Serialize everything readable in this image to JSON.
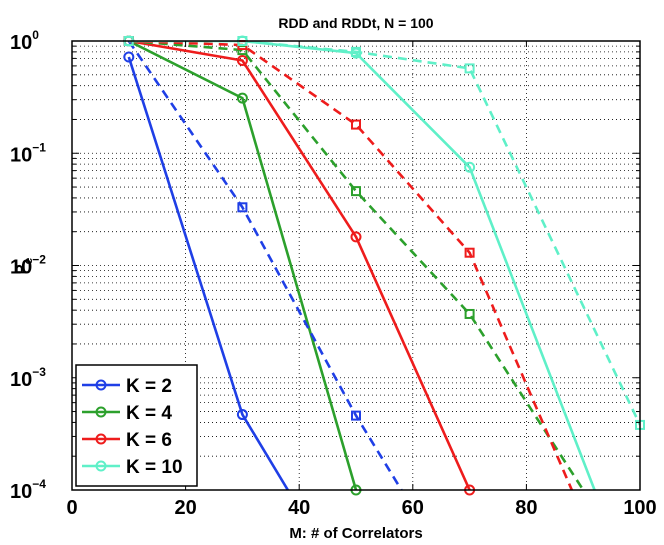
{
  "chart_data": {
    "type": "line",
    "title": "RDD and RDDt, N = 100",
    "xlabel": "M: # of Correlators",
    "ylabel": "P",
    "ylabel_subscript": "e",
    "xlim": [
      0,
      100
    ],
    "ylim": [
      0.0001,
      1
    ],
    "yscale": "log",
    "grid": true,
    "x_ticks": [
      0,
      20,
      40,
      60,
      80,
      100
    ],
    "x_tick_labels": [
      "0",
      "20",
      "40",
      "60",
      "80",
      "100"
    ],
    "y_ticks": [
      {
        "value": 1,
        "base": "10",
        "exp": "0"
      },
      {
        "value": 0.1,
        "base": "10",
        "exp": "−1"
      },
      {
        "value": 0.01,
        "base": "10",
        "exp": "−2"
      },
      {
        "value": 0.001,
        "base": "10",
        "exp": "−3"
      },
      {
        "value": 0.0001,
        "base": "10",
        "exp": "−4"
      }
    ],
    "legend_position": "bottom-left",
    "series": [
      {
        "name": "K = 2",
        "method": "RDD",
        "color": "#1f3fe6",
        "linestyle": "solid",
        "marker": "circle",
        "x": [
          10,
          30,
          38
        ],
        "y": [
          0.72,
          0.00047,
          0.0001
        ],
        "marker_x": [
          10,
          30
        ]
      },
      {
        "name": "K = 4",
        "method": "RDD",
        "color": "#2ca02c",
        "linestyle": "solid",
        "marker": "circle",
        "x": [
          10,
          30,
          50
        ],
        "y": [
          1.0,
          0.31,
          0.0001
        ],
        "marker_x": [
          10,
          30,
          50
        ]
      },
      {
        "name": "K = 6",
        "method": "RDD",
        "color": "#ee1c1c",
        "linestyle": "solid",
        "marker": "circle",
        "x": [
          10,
          30,
          50,
          70
        ],
        "y": [
          1.0,
          0.67,
          0.018,
          0.0001
        ],
        "marker_x": [
          10,
          30,
          50,
          70
        ]
      },
      {
        "name": "K = 10",
        "method": "RDD",
        "color": "#5ff0c8",
        "linestyle": "solid",
        "marker": "circle",
        "x": [
          10,
          30,
          50,
          70,
          92
        ],
        "y": [
          1.0,
          1.0,
          0.78,
          0.075,
          0.0001
        ],
        "marker_x": [
          10,
          30,
          50,
          70
        ]
      },
      {
        "name": "K = 2",
        "method": "RDDt",
        "color": "#1f3fe6",
        "linestyle": "dashed",
        "marker": "square",
        "x": [
          10,
          30,
          50,
          58
        ],
        "y": [
          1.0,
          0.033,
          0.00046,
          0.0001
        ],
        "marker_x": [
          10,
          30,
          50
        ]
      },
      {
        "name": "K = 4",
        "method": "RDDt",
        "color": "#2ca02c",
        "linestyle": "dashed",
        "marker": "square",
        "x": [
          10,
          30,
          50,
          70,
          90
        ],
        "y": [
          1.0,
          0.83,
          0.046,
          0.0037,
          0.0001
        ],
        "marker_x": [
          10,
          30,
          50,
          70
        ]
      },
      {
        "name": "K = 6",
        "method": "RDDt",
        "color": "#ee1c1c",
        "linestyle": "dashed",
        "marker": "square",
        "x": [
          10,
          30,
          50,
          70,
          88
        ],
        "y": [
          1.0,
          0.92,
          0.18,
          0.013,
          0.0001
        ],
        "marker_x": [
          10,
          30,
          50,
          70
        ]
      },
      {
        "name": "K = 10",
        "method": "RDDt",
        "color": "#5ff0c8",
        "linestyle": "dashed",
        "marker": "square",
        "x": [
          10,
          30,
          50,
          70,
          100
        ],
        "y": [
          1.0,
          1.0,
          0.8,
          0.57,
          0.00038
        ],
        "marker_x": [
          10,
          30,
          50,
          70,
          100
        ]
      }
    ],
    "legend": [
      {
        "label": "K = 2",
        "color": "#1f3fe6"
      },
      {
        "label": "K = 4",
        "color": "#2ca02c"
      },
      {
        "label": "K = 6",
        "color": "#ee1c1c"
      },
      {
        "label": "K = 10",
        "color": "#5ff0c8"
      }
    ]
  }
}
